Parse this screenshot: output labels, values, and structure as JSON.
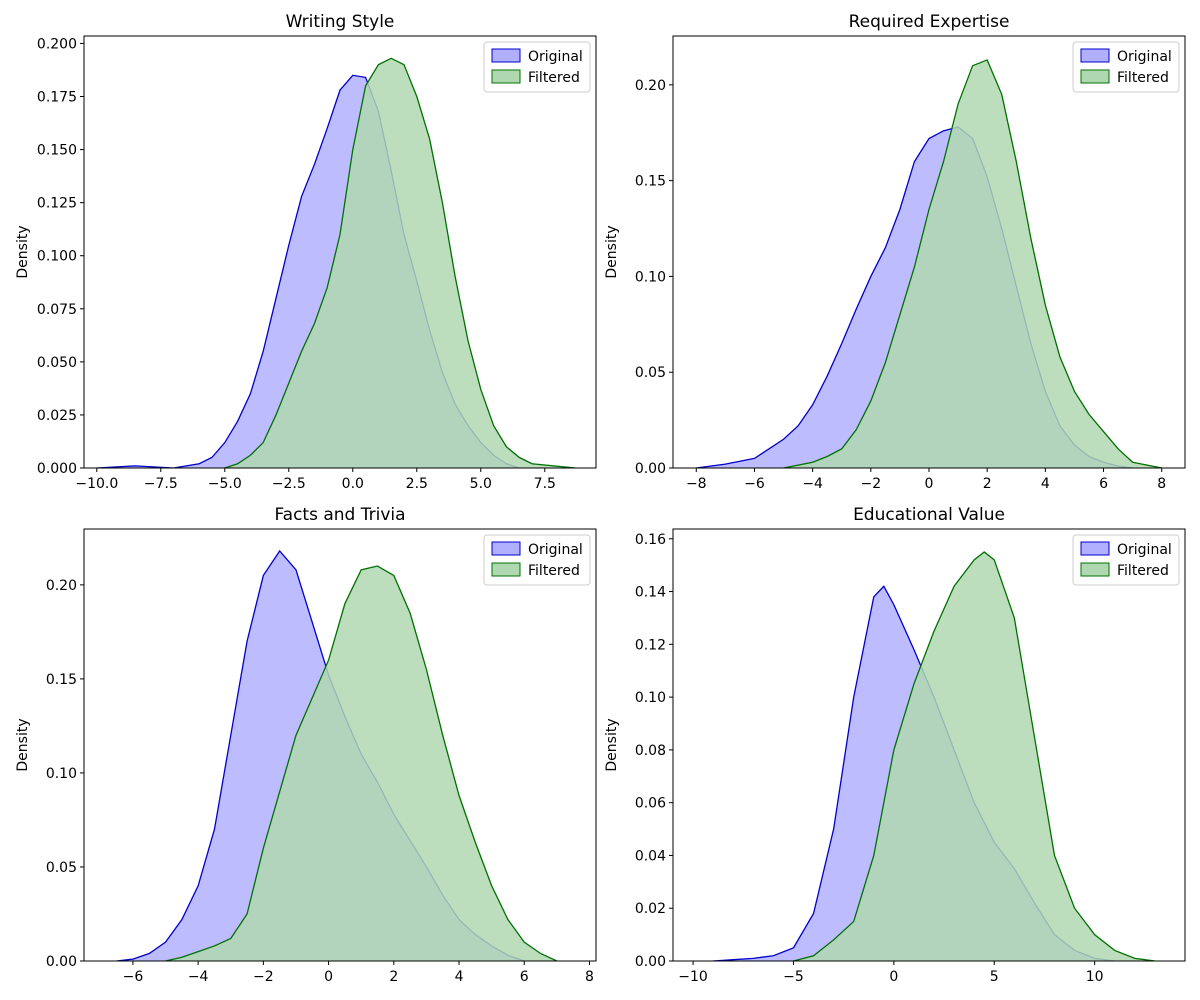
{
  "chart_data": [
    {
      "type": "area",
      "title": "Writing Style",
      "xlabel": "",
      "ylabel": "Density",
      "xlim": [
        -10.5,
        9.5
      ],
      "ylim": [
        0,
        0.2035
      ],
      "xticks": [
        -10.0,
        -7.5,
        -5.0,
        -2.5,
        0.0,
        2.5,
        5.0,
        7.5
      ],
      "xtick_labels": [
        "−10.0",
        "−7.5",
        "−5.0",
        "−2.5",
        "0.0",
        "2.5",
        "5.0",
        "7.5"
      ],
      "yticks": [
        0,
        0.025,
        0.05,
        0.075,
        0.1,
        0.125,
        0.15,
        0.175,
        0.2
      ],
      "ytick_labels": [
        "0.000",
        "0.025",
        "0.050",
        "0.075",
        "0.100",
        "0.125",
        "0.150",
        "0.175",
        "0.200"
      ],
      "legend_position": "top-right",
      "series": [
        {
          "name": "Original",
          "color": "#0000cc",
          "fill": "#b0b0ff",
          "x": [
            -10,
            -8.5,
            -7,
            -6,
            -5.5,
            -5,
            -4.5,
            -4,
            -3.5,
            -3,
            -2.5,
            -2,
            -1.5,
            -1,
            -0.5,
            0,
            0.5,
            1,
            1.5,
            2,
            2.5,
            3,
            3.5,
            4,
            4.5,
            5,
            5.5,
            6,
            6.5
          ],
          "y": [
            0.0,
            0.001,
            0.0,
            0.002,
            0.005,
            0.012,
            0.022,
            0.035,
            0.055,
            0.08,
            0.105,
            0.128,
            0.143,
            0.16,
            0.178,
            0.185,
            0.184,
            0.168,
            0.14,
            0.11,
            0.088,
            0.065,
            0.045,
            0.03,
            0.02,
            0.012,
            0.006,
            0.002,
            0.0
          ]
        },
        {
          "name": "Filtered",
          "color": "#007000",
          "fill": "#b0d8b0",
          "x": [
            -5,
            -4.5,
            -4,
            -3.5,
            -3,
            -2.5,
            -2,
            -1.5,
            -1,
            -0.5,
            0,
            0.5,
            1,
            1.5,
            2,
            2.5,
            3,
            3.5,
            4,
            4.5,
            5,
            5.5,
            6,
            6.5,
            7,
            8.7
          ],
          "y": [
            0.0,
            0.002,
            0.006,
            0.012,
            0.025,
            0.04,
            0.055,
            0.068,
            0.085,
            0.11,
            0.15,
            0.18,
            0.19,
            0.193,
            0.19,
            0.175,
            0.155,
            0.125,
            0.09,
            0.06,
            0.037,
            0.02,
            0.01,
            0.005,
            0.002,
            0.0
          ]
        }
      ]
    },
    {
      "type": "area",
      "title": "Required Expertise",
      "xlabel": "",
      "ylabel": "Density",
      "xlim": [
        -8.8,
        8.8
      ],
      "ylim": [
        0,
        0.2255
      ],
      "xticks": [
        -8,
        -6,
        -4,
        -2,
        0,
        2,
        4,
        6,
        8
      ],
      "xtick_labels": [
        "−8",
        "−6",
        "−4",
        "−2",
        "0",
        "2",
        "4",
        "6",
        "8"
      ],
      "yticks": [
        0,
        0.05,
        0.1,
        0.15,
        0.2
      ],
      "ytick_labels": [
        "0.00",
        "0.05",
        "0.10",
        "0.15",
        "0.20"
      ],
      "legend_position": "top-right",
      "series": [
        {
          "name": "Original",
          "color": "#0000cc",
          "fill": "#b0b0ff",
          "x": [
            -8,
            -7,
            -6,
            -5,
            -4.5,
            -4,
            -3.5,
            -3,
            -2.5,
            -2,
            -1.5,
            -1,
            -0.5,
            0,
            0.5,
            1,
            1.5,
            2,
            2.5,
            3,
            3.5,
            4,
            4.5,
            5,
            5.5,
            6,
            6.5,
            7
          ],
          "y": [
            0.0,
            0.002,
            0.005,
            0.015,
            0.022,
            0.033,
            0.048,
            0.065,
            0.083,
            0.1,
            0.115,
            0.135,
            0.16,
            0.172,
            0.176,
            0.178,
            0.172,
            0.152,
            0.125,
            0.095,
            0.065,
            0.04,
            0.022,
            0.012,
            0.006,
            0.003,
            0.001,
            0.0
          ]
        },
        {
          "name": "Filtered",
          "color": "#007000",
          "fill": "#b0d8b0",
          "x": [
            -5,
            -4,
            -3.5,
            -3,
            -2.5,
            -2,
            -1.5,
            -1,
            -0.5,
            0,
            0.5,
            1,
            1.5,
            2,
            2.5,
            3,
            3.5,
            4,
            4.5,
            5,
            5.5,
            6,
            6.5,
            7,
            8
          ],
          "y": [
            0.0,
            0.003,
            0.006,
            0.01,
            0.02,
            0.035,
            0.055,
            0.08,
            0.105,
            0.135,
            0.16,
            0.19,
            0.21,
            0.213,
            0.195,
            0.16,
            0.12,
            0.085,
            0.058,
            0.04,
            0.028,
            0.019,
            0.01,
            0.003,
            0.0
          ]
        }
      ]
    },
    {
      "type": "area",
      "title": "Facts and Trivia",
      "xlabel": "",
      "ylabel": "Density",
      "xlim": [
        -7.5,
        8.2
      ],
      "ylim": [
        0,
        0.2297
      ],
      "xticks": [
        -6,
        -4,
        -2,
        0,
        2,
        4,
        6,
        8
      ],
      "xtick_labels": [
        "−6",
        "−4",
        "−2",
        "0",
        "2",
        "4",
        "6",
        "8"
      ],
      "yticks": [
        0,
        0.05,
        0.1,
        0.15,
        0.2
      ],
      "ytick_labels": [
        "0.00",
        "0.05",
        "0.10",
        "0.15",
        "0.20"
      ],
      "legend_position": "top-right",
      "series": [
        {
          "name": "Original",
          "color": "#0000cc",
          "fill": "#b0b0ff",
          "x": [
            -6.5,
            -6,
            -5.5,
            -5,
            -4.5,
            -4,
            -3.5,
            -3,
            -2.5,
            -2,
            -1.5,
            -1,
            -0.5,
            0,
            0.5,
            1,
            1.5,
            2,
            2.5,
            3,
            3.5,
            4,
            4.5,
            5,
            5.5,
            6
          ],
          "y": [
            0.0,
            0.001,
            0.004,
            0.01,
            0.022,
            0.04,
            0.07,
            0.12,
            0.17,
            0.205,
            0.218,
            0.208,
            0.18,
            0.152,
            0.13,
            0.11,
            0.095,
            0.078,
            0.064,
            0.05,
            0.035,
            0.022,
            0.014,
            0.008,
            0.003,
            0.0
          ]
        },
        {
          "name": "Filtered",
          "color": "#007000",
          "fill": "#b0d8b0",
          "x": [
            -5,
            -4.5,
            -4,
            -3.5,
            -3,
            -2.5,
            -2,
            -1.5,
            -1,
            -0.5,
            0,
            0.5,
            1,
            1.5,
            2,
            2.5,
            3,
            3.5,
            4,
            4.5,
            5,
            5.5,
            6,
            6.5,
            7
          ],
          "y": [
            0.0,
            0.002,
            0.005,
            0.008,
            0.012,
            0.025,
            0.06,
            0.09,
            0.12,
            0.14,
            0.16,
            0.19,
            0.208,
            0.21,
            0.205,
            0.185,
            0.155,
            0.12,
            0.088,
            0.063,
            0.04,
            0.022,
            0.01,
            0.004,
            0.0
          ]
        }
      ]
    },
    {
      "type": "area",
      "title": "Educational Value",
      "xlabel": "",
      "ylabel": "Density",
      "xlim": [
        -11.0,
        14.5
      ],
      "ylim": [
        0,
        0.1637
      ],
      "xticks": [
        -10,
        -5,
        0,
        5,
        10
      ],
      "xtick_labels": [
        "−10",
        "−5",
        "0",
        "5",
        "10"
      ],
      "yticks": [
        0,
        0.02,
        0.04,
        0.06,
        0.08,
        0.1,
        0.12,
        0.14,
        0.16
      ],
      "ytick_labels": [
        "0.00",
        "0.02",
        "0.04",
        "0.06",
        "0.08",
        "0.10",
        "0.12",
        "0.14",
        "0.16"
      ],
      "legend_position": "top-right",
      "series": [
        {
          "name": "Original",
          "color": "#0000cc",
          "fill": "#b0b0ff",
          "x": [
            -9,
            -8,
            -7,
            -6,
            -5,
            -4,
            -3,
            -2,
            -1,
            -0.5,
            0,
            1,
            2,
            3,
            4,
            5,
            6,
            7,
            8,
            9,
            10,
            11
          ],
          "y": [
            0.0,
            0.0005,
            0.001,
            0.002,
            0.005,
            0.018,
            0.05,
            0.1,
            0.138,
            0.142,
            0.135,
            0.118,
            0.1,
            0.08,
            0.06,
            0.045,
            0.035,
            0.022,
            0.01,
            0.004,
            0.001,
            0.0
          ]
        },
        {
          "name": "Filtered",
          "color": "#007000",
          "fill": "#b0d8b0",
          "x": [
            -5,
            -4,
            -3,
            -2,
            -1,
            0,
            1,
            2,
            3,
            4,
            4.5,
            5,
            6,
            7,
            8,
            9,
            10,
            11,
            12,
            13
          ],
          "y": [
            0.0,
            0.002,
            0.008,
            0.015,
            0.04,
            0.08,
            0.105,
            0.125,
            0.142,
            0.152,
            0.155,
            0.152,
            0.13,
            0.085,
            0.04,
            0.02,
            0.01,
            0.004,
            0.001,
            0.0
          ]
        }
      ]
    }
  ]
}
